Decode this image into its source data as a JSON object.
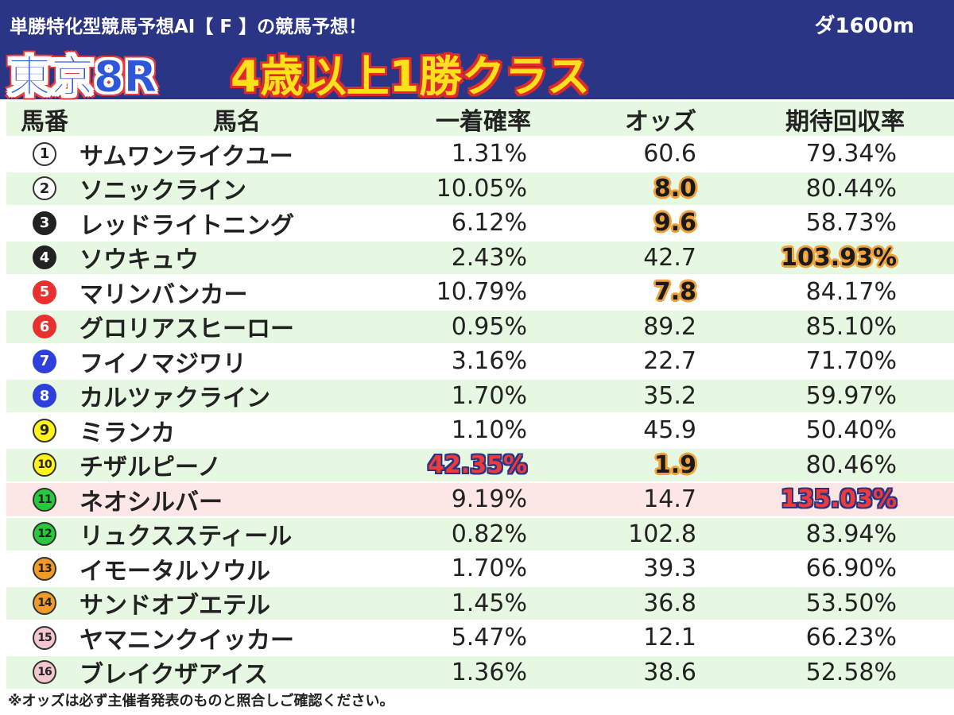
{
  "header": {
    "subtitle": "単勝特化型競馬予想AI【 F 】の競馬予想！",
    "course": "ダ1600m",
    "race": "東京8R",
    "class_name": "4歳以上1勝クラス"
  },
  "columns": {
    "num": "馬番",
    "name": "馬名",
    "prob": "一着確率",
    "odds": "オッズ",
    "roi": "期待回収率"
  },
  "colors": {
    "header_bg": "#2b3585",
    "row_green": "#e6f8e2",
    "row_highlight": "#fde6e6",
    "accent_orange": "#f0a23a",
    "accent_red": "#ec3b3b"
  },
  "horses": [
    {
      "num": "1",
      "name": "サムワンライクユー",
      "prob": "1.31%",
      "odds": "60.6",
      "roi": "79.34%"
    },
    {
      "num": "2",
      "name": "ソニックライン",
      "prob": "10.05%",
      "odds": "8.0",
      "roi": "80.44%"
    },
    {
      "num": "3",
      "name": "レッドライトニング",
      "prob": "6.12%",
      "odds": "9.6",
      "roi": "58.73%"
    },
    {
      "num": "4",
      "name": "ソウキュウ",
      "prob": "2.43%",
      "odds": "42.7",
      "roi": "103.93%"
    },
    {
      "num": "5",
      "name": "マリンバンカー",
      "prob": "10.79%",
      "odds": "7.8",
      "roi": "84.17%"
    },
    {
      "num": "6",
      "name": "グロリアスヒーロー",
      "prob": "0.95%",
      "odds": "89.2",
      "roi": "85.10%"
    },
    {
      "num": "7",
      "name": "フイノマジワリ",
      "prob": "3.16%",
      "odds": "22.7",
      "roi": "71.70%"
    },
    {
      "num": "8",
      "name": "カルツァクライン",
      "prob": "1.70%",
      "odds": "35.2",
      "roi": "59.97%"
    },
    {
      "num": "9",
      "name": "ミランカ",
      "prob": "1.10%",
      "odds": "45.9",
      "roi": "50.40%"
    },
    {
      "num": "10",
      "name": "チザルピーノ",
      "prob": "42.35%",
      "odds": "1.9",
      "roi": "80.46%"
    },
    {
      "num": "11",
      "name": "ネオシルバー",
      "prob": "9.19%",
      "odds": "14.7",
      "roi": "135.03%"
    },
    {
      "num": "12",
      "name": "リュクススティール",
      "prob": "0.82%",
      "odds": "102.8",
      "roi": "83.94%"
    },
    {
      "num": "13",
      "name": "イモータルソウル",
      "prob": "1.70%",
      "odds": "39.3",
      "roi": "66.90%"
    },
    {
      "num": "14",
      "name": "サンドオブエテル",
      "prob": "1.45%",
      "odds": "36.8",
      "roi": "53.50%"
    },
    {
      "num": "15",
      "name": "ヤマニンクイッカー",
      "prob": "5.47%",
      "odds": "12.1",
      "roi": "66.23%"
    },
    {
      "num": "16",
      "name": "ブレイクザアイス",
      "prob": "1.36%",
      "odds": "38.6",
      "roi": "52.58%"
    }
  ],
  "footnote": "※オッズは必ず主催者発表のものと照合しご確認ください。"
}
